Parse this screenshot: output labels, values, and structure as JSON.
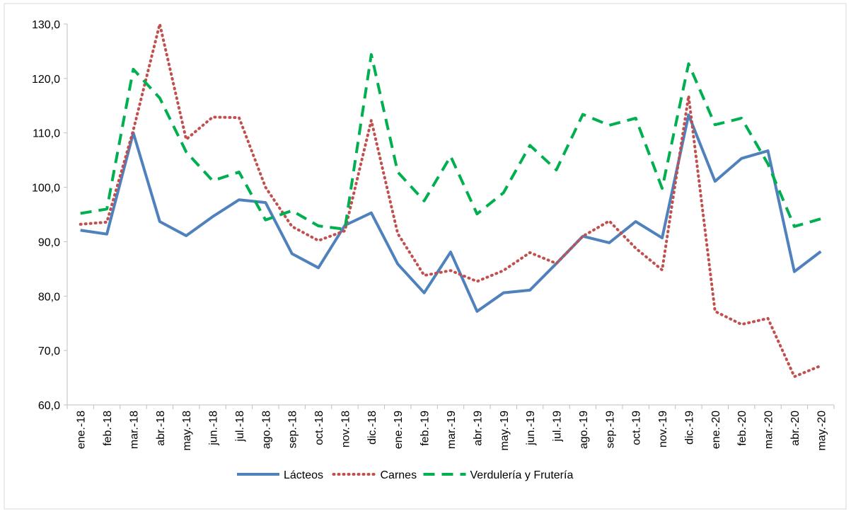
{
  "chart_data": {
    "type": "line",
    "categories": [
      "ene.-18",
      "feb.-18",
      "mar.-18",
      "abr.-18",
      "may.-18",
      "jun.-18",
      "jul.-18",
      "ago.-18",
      "sep.-18",
      "oct.-18",
      "nov.-18",
      "dic.-18",
      "ene.-19",
      "feb.-19",
      "mar.-19",
      "abr.-19",
      "may.-19",
      "jun.-19",
      "jul.-19",
      "ago.-19",
      "sep.-19",
      "oct.-19",
      "nov.-19",
      "dic.-19",
      "ene.-20",
      "feb.-20",
      "mar.-20",
      "abr.-20",
      "may.-20"
    ],
    "series": [
      {
        "name": "Lácteos",
        "color": "#4f81bd",
        "dash": "solid",
        "values": [
          92.1,
          91.4,
          110.0,
          93.7,
          91.1,
          94.6,
          97.7,
          97.2,
          87.8,
          85.2,
          93.0,
          95.3,
          85.9,
          80.6,
          88.1,
          77.2,
          80.6,
          81.1,
          86.0,
          91.0,
          89.8,
          93.7,
          90.7,
          113.3,
          101.1,
          105.3,
          106.7,
          84.5,
          88.2
        ]
      },
      {
        "name": "Carnes",
        "color": "#c0504d",
        "dash": "dot",
        "values": [
          93.2,
          93.6,
          110.5,
          130.0,
          108.8,
          112.9,
          112.8,
          100.0,
          92.8,
          90.2,
          92.0,
          112.3,
          91.5,
          83.8,
          84.7,
          82.7,
          84.7,
          88.0,
          86.0,
          91.0,
          93.8,
          88.8,
          84.8,
          116.8,
          77.2,
          74.8,
          75.9,
          65.2,
          67.2
        ]
      },
      {
        "name": "Verdulería y Frutería",
        "color": "#00b050",
        "dash": "dash",
        "values": [
          95.2,
          96.0,
          121.7,
          116.4,
          106.5,
          101.2,
          102.8,
          94.0,
          95.7,
          92.9,
          92.3,
          124.4,
          102.8,
          97.5,
          105.7,
          95.1,
          99.0,
          107.7,
          103.2,
          113.4,
          111.4,
          112.7,
          99.8,
          122.7,
          111.5,
          112.7,
          104.3,
          92.8,
          94.2
        ]
      }
    ],
    "ylim": [
      60,
      130
    ],
    "yticks": [
      {
        "value": 60,
        "label": "60,0"
      },
      {
        "value": 70,
        "label": "70,0"
      },
      {
        "value": 80,
        "label": "80,0"
      },
      {
        "value": 90,
        "label": "90,0"
      },
      {
        "value": 100,
        "label": "100,0"
      },
      {
        "value": 110,
        "label": "110,0"
      },
      {
        "value": 120,
        "label": "120,0"
      },
      {
        "value": 130,
        "label": "130,0"
      }
    ],
    "grid": false,
    "legend": "bottom"
  }
}
